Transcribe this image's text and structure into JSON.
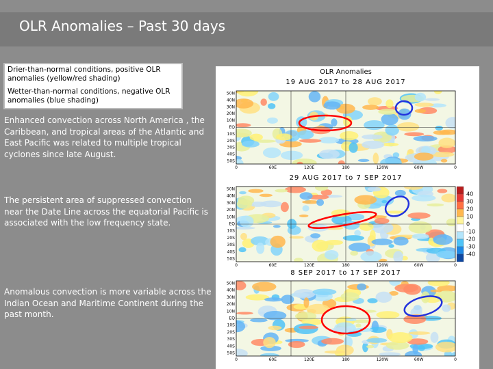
{
  "header": {
    "title": "OLR Anomalies – Past 30 days"
  },
  "legend_box": {
    "positive": "Drier-than-normal conditions, positive OLR anomalies (yellow/red shading)",
    "negative": "Wetter-than-normal conditions, negative OLR anomalies (blue shading)"
  },
  "paragraphs": [
    "Enhanced convection across North America , the Caribbean, and tropical areas of the Atlantic and East Pacific was related to multiple tropical cyclones since late August.",
    "The persistent area of suppressed convection near the Date Line across the equatorial Pacific is associated with the low frequency state.",
    "Anomalous convection is more variable across the Indian Ocean and Maritime Continent during the past month."
  ],
  "maps": [
    {
      "title": "OLR Anomalies",
      "dates": "19 AUG 2017 to 28 AUG 2017"
    },
    {
      "dates": "29 AUG 2017 to 7 SEP 2017"
    },
    {
      "dates": "8 SEP 2017 to 17 SEP 2017"
    }
  ],
  "map_axes": {
    "lat_labels": [
      "50N",
      "40N",
      "30N",
      "20N",
      "10N",
      "EQ",
      "10S",
      "20S",
      "30S",
      "40S",
      "50S"
    ],
    "lon_labels": [
      "0",
      "60E",
      "120E",
      "180",
      "120W",
      "60W",
      "0"
    ]
  },
  "colorbar": {
    "labels": [
      40,
      30,
      20,
      10,
      0,
      -10,
      -20,
      -30,
      -40
    ]
  }
}
